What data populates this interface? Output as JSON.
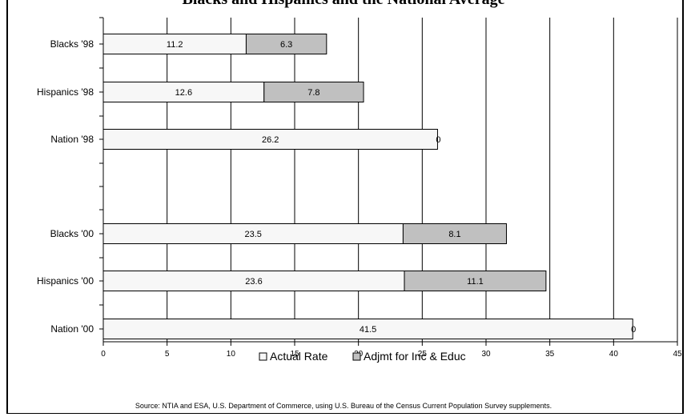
{
  "chart_data": {
    "type": "bar",
    "orientation": "horizontal",
    "stacked": true,
    "title": "Blacks and Hispanics and the National Average",
    "categories": [
      "Blacks '98",
      "Hispanics '98",
      "Nation '98",
      "Blacks '00",
      "Hispanics '00",
      "Nation '00"
    ],
    "series": [
      {
        "name": "Actual Rate",
        "values": [
          11.2,
          12.6,
          26.2,
          23.5,
          23.6,
          41.5
        ],
        "labels": [
          "11.2",
          "12.6",
          "26.2",
          "23.5",
          "23.6",
          "41.5"
        ],
        "color": "#f7f7f7"
      },
      {
        "name": "Adjmt for Inc & Educ",
        "values": [
          6.3,
          7.8,
          0,
          8.1,
          11.1,
          0
        ],
        "labels": [
          "6.3",
          "7.8",
          "0",
          "8.1",
          "11.1",
          "0"
        ],
        "color": "#c0c0c0"
      }
    ],
    "xlim": [
      0,
      45
    ],
    "xticks": [
      "0",
      "5",
      "10",
      "15",
      "20",
      "25",
      "30",
      "35",
      "40",
      "45"
    ],
    "grid": "vertical",
    "legend": "bottom"
  },
  "source": "Source:  NTIA and ESA, U.S. Department of Commerce, using U.S. Bureau of the Census Current Population Survey supplements."
}
